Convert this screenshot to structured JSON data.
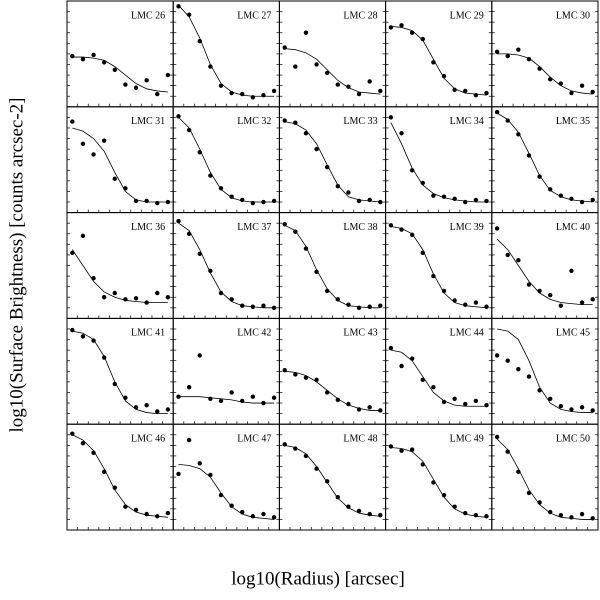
{
  "xlabel": "log10(Radius) [arcsec]",
  "ylabel": "log10(Surface Brightness) [counts arcsec-2]",
  "chart_data": [
    {
      "type": "line",
      "title": "LMC 26",
      "xlim": [
        0,
        10
      ],
      "ylim": [
        0,
        10
      ],
      "x": [
        0.5,
        1.5,
        2.5,
        3.5,
        4.5,
        5.5,
        6.5,
        7.5,
        8.5,
        9.5
      ],
      "fit": [
        4.7,
        4.7,
        4.6,
        4.4,
        3.8,
        3,
        2.2,
        1.7,
        1.5,
        1.4
      ],
      "values": [
        4.8,
        4.5,
        4.9,
        4.2,
        3.5,
        2.1,
        1.8,
        2.5,
        1.2,
        3
      ]
    },
    {
      "type": "line",
      "title": "LMC 27",
      "xlim": [
        0,
        10
      ],
      "ylim": [
        0,
        10
      ],
      "x": [
        0.5,
        1.5,
        2.5,
        3.5,
        4.5,
        5.5,
        6.5,
        7.5,
        8.5,
        9.5
      ],
      "fit": [
        9.6,
        8.5,
        6.5,
        4,
        2.2,
        1.4,
        1.1,
        1,
        1,
        1
      ],
      "values": [
        9.5,
        8.7,
        6.2,
        3.8,
        2,
        1.3,
        1.2,
        0.9,
        1.1,
        1.5
      ]
    },
    {
      "type": "line",
      "title": "LMC 28",
      "xlim": [
        0,
        10
      ],
      "ylim": [
        0,
        10
      ],
      "x": [
        0.5,
        1.5,
        2.5,
        3.5,
        4.5,
        5.5,
        6.5,
        7.5,
        8.5,
        9.5
      ],
      "fit": [
        5.5,
        5.4,
        5.1,
        4.5,
        3.5,
        2.5,
        1.8,
        1.4,
        1.3,
        1.2
      ],
      "values": [
        5.6,
        3.8,
        7,
        4,
        3.2,
        2.1,
        1.9,
        1.2,
        2.4,
        1.5
      ]
    },
    {
      "type": "line",
      "title": "LMC 29",
      "xlim": [
        0,
        10
      ],
      "ylim": [
        0,
        10
      ],
      "x": [
        0.5,
        1.5,
        2.5,
        3.5,
        4.5,
        5.5,
        6.5,
        7.5,
        8.5,
        9.5
      ],
      "fit": [
        7.6,
        7.5,
        7.2,
        6.3,
        4.5,
        2.7,
        1.7,
        1.3,
        1.2,
        1.1
      ],
      "values": [
        7.5,
        7.7,
        7,
        6.4,
        4.2,
        2.9,
        1.6,
        1.5,
        1.1,
        1.3
      ]
    },
    {
      "type": "line",
      "title": "LMC 30",
      "xlim": [
        0,
        10
      ],
      "ylim": [
        0,
        10
      ],
      "x": [
        0.5,
        1.5,
        2.5,
        3.5,
        4.5,
        5.5,
        6.5,
        7.5,
        8.5,
        9.5
      ],
      "fit": [
        5,
        5,
        4.9,
        4.6,
        3.8,
        2.8,
        2,
        1.5,
        1.3,
        1.2
      ],
      "values": [
        5.2,
        4.8,
        5.4,
        4.5,
        3.6,
        2.6,
        2.2,
        1.3,
        2,
        1.4
      ]
    },
    {
      "type": "line",
      "title": "LMC 31",
      "xlim": [
        0,
        10
      ],
      "ylim": [
        0,
        10
      ],
      "x": [
        0.5,
        1.5,
        2.5,
        3.5,
        4.5,
        5.5,
        6.5,
        7.5,
        8.5,
        9.5
      ],
      "fit": [
        8,
        7.7,
        7,
        5.8,
        3.8,
        2,
        1.2,
        1,
        1,
        1
      ],
      "values": [
        8.6,
        6.5,
        5.5,
        6.8,
        3.2,
        2.3,
        1.1,
        1.1,
        0.9,
        1
      ]
    },
    {
      "type": "line",
      "title": "LMC 32",
      "xlim": [
        0,
        10
      ],
      "ylim": [
        0,
        10
      ],
      "x": [
        0.5,
        1.5,
        2.5,
        3.5,
        4.5,
        5.5,
        6.5,
        7.5,
        8.5,
        9.5
      ],
      "fit": [
        9,
        8,
        6,
        3.8,
        2.2,
        1.4,
        1.1,
        1,
        1,
        1
      ],
      "values": [
        9.1,
        7.8,
        5.7,
        3.5,
        2.3,
        1.5,
        1.2,
        0.9,
        1,
        1.1
      ]
    },
    {
      "type": "line",
      "title": "LMC 33",
      "xlim": [
        0,
        10
      ],
      "ylim": [
        0,
        10
      ],
      "x": [
        0.5,
        1.5,
        2.5,
        3.5,
        4.5,
        5.5,
        6.5,
        7.5,
        8.5,
        9.5
      ],
      "fit": [
        8.6,
        8.4,
        7.8,
        6.5,
        4.5,
        2.6,
        1.5,
        1.2,
        1.1,
        1
      ],
      "values": [
        8.7,
        8.5,
        7.5,
        6,
        4.3,
        2.5,
        1.9,
        1.1,
        1.2,
        1
      ]
    },
    {
      "type": "line",
      "title": "LMC 34",
      "xlim": [
        0,
        10
      ],
      "ylim": [
        0,
        10
      ],
      "x": [
        0.5,
        1.5,
        2.5,
        3.5,
        4.5,
        5.5,
        6.5,
        7.5,
        8.5,
        9.5
      ],
      "fit": [
        8.5,
        6.5,
        4.2,
        2.6,
        1.8,
        1.4,
        1.2,
        1.1,
        1,
        1
      ],
      "values": [
        9,
        7.5,
        4,
        2.8,
        1.6,
        1.5,
        1.3,
        1,
        1.2,
        1.1
      ]
    },
    {
      "type": "line",
      "title": "LMC 35",
      "xlim": [
        0,
        10
      ],
      "ylim": [
        0,
        10
      ],
      "x": [
        0.5,
        1.5,
        2.5,
        3.5,
        4.5,
        5.5,
        6.5,
        7.5,
        8.5,
        9.5
      ],
      "fit": [
        9.4,
        8.8,
        7.6,
        5.6,
        3.5,
        2.1,
        1.5,
        1.2,
        1.1,
        1
      ],
      "values": [
        9.5,
        8.7,
        7.4,
        5.4,
        3.4,
        2.2,
        1.6,
        1.3,
        1,
        1.2
      ]
    },
    {
      "type": "line",
      "title": "LMC 36",
      "xlim": [
        0,
        10
      ],
      "ylim": [
        0,
        10
      ],
      "x": [
        0.5,
        1.5,
        2.5,
        3.5,
        4.5,
        5.5,
        6.5,
        7.5,
        8.5,
        9.5
      ],
      "fit": [
        6.5,
        5,
        3.5,
        2.5,
        2,
        1.7,
        1.6,
        1.5,
        1.5,
        1.5
      ],
      "values": [
        6.2,
        7.8,
        3.8,
        2,
        2.4,
        1.8,
        1.9,
        1.5,
        2.4,
        2
      ]
    },
    {
      "type": "line",
      "title": "LMC 37",
      "xlim": [
        0,
        10
      ],
      "ylim": [
        0,
        10
      ],
      "x": [
        0.5,
        1.5,
        2.5,
        3.5,
        4.5,
        5.5,
        6.5,
        7.5,
        8.5,
        9.5
      ],
      "fit": [
        9,
        8.3,
        6.5,
        4.3,
        2.5,
        1.6,
        1.2,
        1.1,
        1,
        1
      ],
      "values": [
        9.2,
        8,
        6.1,
        4.5,
        2.4,
        1.8,
        1.2,
        1.1,
        1.2,
        1
      ]
    },
    {
      "type": "line",
      "title": "LMC 38",
      "xlim": [
        0,
        10
      ],
      "ylim": [
        0,
        10
      ],
      "x": [
        0.5,
        1.5,
        2.5,
        3.5,
        4.5,
        5.5,
        6.5,
        7.5,
        8.5,
        9.5
      ],
      "fit": [
        8.8,
        8.3,
        6.8,
        4.6,
        2.8,
        1.7,
        1.2,
        1.1,
        1,
        1
      ],
      "values": [
        8.9,
        8.2,
        6.6,
        4.4,
        2.6,
        1.8,
        1.3,
        1,
        1.1,
        1.2
      ]
    },
    {
      "type": "line",
      "title": "LMC 39",
      "xlim": [
        0,
        10
      ],
      "ylim": [
        0,
        10
      ],
      "x": [
        0.5,
        1.5,
        2.5,
        3.5,
        4.5,
        5.5,
        6.5,
        7.5,
        8.5,
        9.5
      ],
      "fit": [
        8.7,
        8.5,
        8,
        6.5,
        4.2,
        2.4,
        1.5,
        1.2,
        1.1,
        1
      ],
      "values": [
        8.8,
        8.4,
        7.9,
        6.2,
        4,
        2.6,
        1.7,
        1.3,
        1.5,
        1.1
      ]
    },
    {
      "type": "line",
      "title": "LMC 40",
      "xlim": [
        0,
        10
      ],
      "ylim": [
        0,
        10
      ],
      "x": [
        0.5,
        1.5,
        2.5,
        3.5,
        4.5,
        5.5,
        6.5,
        7.5,
        8.5,
        9.5
      ],
      "fit": [
        7.5,
        6.5,
        5,
        3.5,
        2.4,
        1.8,
        1.5,
        1.4,
        1.3,
        1.3
      ],
      "values": [
        8.5,
        6,
        5.5,
        3.2,
        2.6,
        2.2,
        1.2,
        4.5,
        1.5,
        1.8
      ]
    },
    {
      "type": "line",
      "title": "LMC 41",
      "xlim": [
        0,
        10
      ],
      "ylim": [
        0,
        10
      ],
      "x": [
        0.5,
        1.5,
        2.5,
        3.5,
        4.5,
        5.5,
        6.5,
        7.5,
        8.5,
        9.5
      ],
      "fit": [
        8.8,
        8.6,
        8,
        6.4,
        4,
        2.2,
        1.4,
        1.1,
        1,
        1
      ],
      "values": [
        8.9,
        8.3,
        7.9,
        6.3,
        3.8,
        2.5,
        1.6,
        1.8,
        1.2,
        1.4
      ]
    },
    {
      "type": "line",
      "title": "LMC 42",
      "xlim": [
        0,
        10
      ],
      "ylim": [
        0,
        10
      ],
      "x": [
        0.5,
        1.5,
        2.5,
        3.5,
        4.5,
        5.5,
        6.5,
        7.5,
        8.5,
        9.5
      ],
      "fit": [
        2.6,
        2.6,
        2.6,
        2.5,
        2.4,
        2.3,
        2.1,
        2,
        2,
        2
      ],
      "values": [
        2.6,
        3.5,
        6.5,
        2.4,
        2.2,
        3,
        2.2,
        2.6,
        2,
        2.5
      ]
    },
    {
      "type": "line",
      "title": "LMC 43",
      "xlim": [
        0,
        10
      ],
      "ylim": [
        0,
        10
      ],
      "x": [
        0.5,
        1.5,
        2.5,
        3.5,
        4.5,
        5.5,
        6.5,
        7.5,
        8.5,
        9.5
      ],
      "fit": [
        5,
        4.9,
        4.6,
        4,
        3.2,
        2.4,
        1.8,
        1.5,
        1.3,
        1.3
      ],
      "values": [
        5.1,
        4.7,
        4.4,
        4.2,
        3,
        2.3,
        1.9,
        1.4,
        1.6,
        1.3
      ]
    },
    {
      "type": "line",
      "title": "LMC 44",
      "xlim": [
        0,
        10
      ],
      "ylim": [
        0,
        10
      ],
      "x": [
        0.5,
        1.5,
        2.5,
        3.5,
        4.5,
        5.5,
        6.5,
        7.5,
        8.5,
        9.5
      ],
      "fit": [
        7,
        6.8,
        6,
        4.5,
        3,
        2.2,
        1.8,
        1.7,
        1.7,
        1.7
      ],
      "values": [
        7.2,
        5.5,
        6.2,
        4.2,
        3.5,
        2.1,
        2.4,
        1.9,
        2.2,
        1.8
      ]
    },
    {
      "type": "line",
      "title": "LMC 45",
      "xlim": [
        0,
        10
      ],
      "ylim": [
        0,
        10
      ],
      "x": [
        0.5,
        1.5,
        2.5,
        3.5,
        4.5,
        5.5,
        6.5,
        7.5,
        8.5,
        9.5
      ],
      "fit": [
        9,
        8.8,
        8,
        6,
        3.5,
        2,
        1.4,
        1.2,
        1.1,
        1.1
      ],
      "values": [
        6.5,
        6,
        5.2,
        4.5,
        3.2,
        2.4,
        1.7,
        1.4,
        1.6,
        1.3
      ]
    },
    {
      "type": "line",
      "title": "LMC 46",
      "xlim": [
        0,
        10
      ],
      "ylim": [
        0,
        10
      ],
      "x": [
        0.5,
        1.5,
        2.5,
        3.5,
        4.5,
        5.5,
        6.5,
        7.5,
        8.5,
        9.5
      ],
      "fit": [
        9,
        8.5,
        7.5,
        5.8,
        3.8,
        2.4,
        1.7,
        1.4,
        1.3,
        1.2
      ],
      "values": [
        9.1,
        8.2,
        7.3,
        5.5,
        4,
        2.2,
        1.9,
        1.5,
        1.3,
        1.6
      ]
    },
    {
      "type": "line",
      "title": "LMC 47",
      "xlim": [
        0,
        10
      ],
      "ylim": [
        0,
        10
      ],
      "x": [
        0.5,
        1.5,
        2.5,
        3.5,
        4.5,
        5.5,
        6.5,
        7.5,
        8.5,
        9.5
      ],
      "fit": [
        6.2,
        6.1,
        5.8,
        5,
        3.5,
        2.2,
        1.5,
        1.2,
        1.1,
        1
      ],
      "values": [
        5.3,
        8.5,
        6.3,
        5.2,
        3.3,
        2.3,
        1.7,
        1.3,
        1.5,
        1.2
      ]
    },
    {
      "type": "line",
      "title": "LMC 48",
      "xlim": [
        0,
        10
      ],
      "ylim": [
        0,
        10
      ],
      "x": [
        0.5,
        1.5,
        2.5,
        3.5,
        4.5,
        5.5,
        6.5,
        7.5,
        8.5,
        9.5
      ],
      "fit": [
        8,
        7.8,
        7.2,
        6,
        4.5,
        3,
        2.1,
        1.6,
        1.4,
        1.3
      ],
      "values": [
        8.1,
        7.7,
        7,
        5.8,
        4.6,
        3.1,
        2.2,
        1.8,
        1.5,
        1.4
      ]
    },
    {
      "type": "line",
      "title": "LMC 49",
      "xlim": [
        0,
        10
      ],
      "ylim": [
        0,
        10
      ],
      "x": [
        0.5,
        1.5,
        2.5,
        3.5,
        4.5,
        5.5,
        6.5,
        7.5,
        8.5,
        9.5
      ],
      "fit": [
        7.8,
        7.7,
        7.4,
        6.5,
        4.8,
        3.1,
        2,
        1.5,
        1.3,
        1.2
      ],
      "values": [
        7.9,
        7.5,
        7.6,
        6.2,
        4.5,
        3.3,
        2.2,
        1.6,
        1.4,
        1.3
      ]
    },
    {
      "type": "line",
      "title": "LMC 50",
      "xlim": [
        0,
        10
      ],
      "ylim": [
        0,
        10
      ],
      "x": [
        0.5,
        1.5,
        2.5,
        3.5,
        4.5,
        5.5,
        6.5,
        7.5,
        8.5,
        9.5
      ],
      "fit": [
        8.6,
        7.6,
        5.8,
        3.8,
        2.4,
        1.6,
        1.2,
        1.1,
        1,
        1
      ],
      "values": [
        8.8,
        7.4,
        5.5,
        3.5,
        2.6,
        1.7,
        1.4,
        1.2,
        1.5,
        1.1
      ]
    }
  ]
}
